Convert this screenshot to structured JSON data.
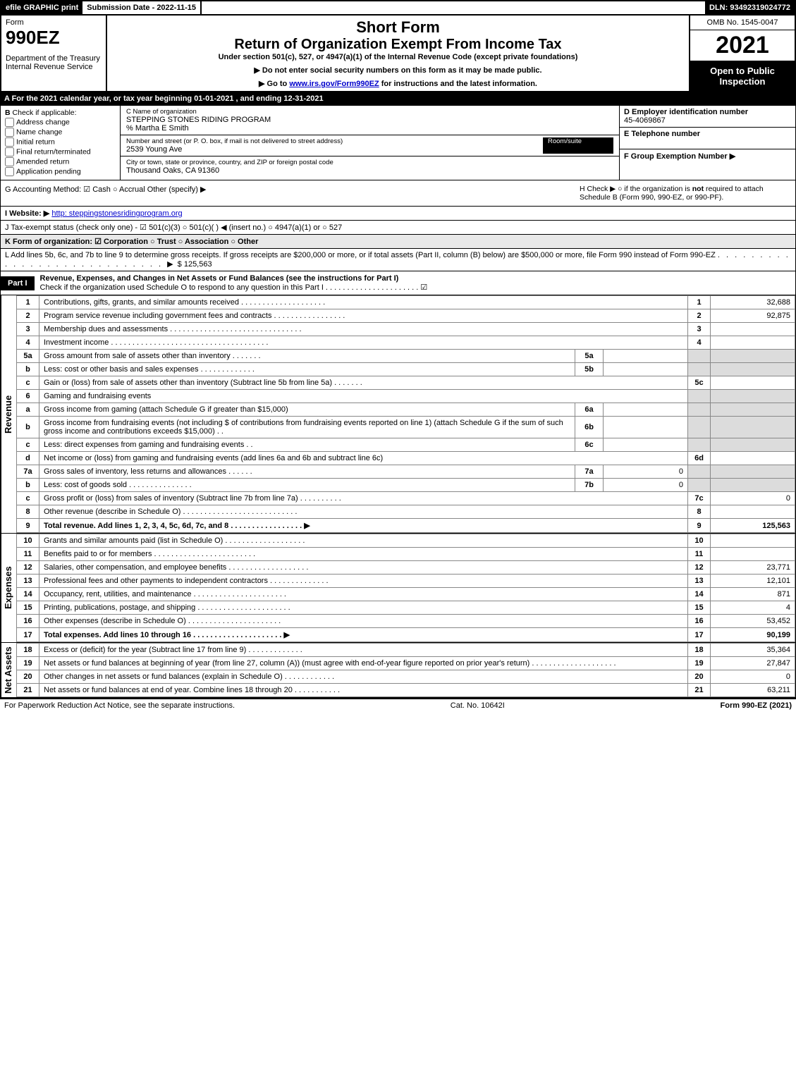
{
  "topbar": {
    "efile": "efile GRAPHIC print",
    "submission": "Submission Date - 2022-11-15",
    "dln": "DLN: 93492319024772"
  },
  "header": {
    "form_word": "Form",
    "form_code": "990EZ",
    "dept": "Department of the Treasury\nInternal Revenue Service",
    "title1": "Short Form",
    "title2": "Return of Organization Exempt From Income Tax",
    "subtitle": "Under section 501(c), 527, or 4947(a)(1) of the Internal Revenue Code (except private foundations)",
    "note1": "▶ Do not enter social security numbers on this form as it may be made public.",
    "note2_pre": "▶ Go to ",
    "note2_link": "www.irs.gov/Form990EZ",
    "note2_post": " for instructions and the latest information.",
    "omb": "OMB No. 1545-0047",
    "year": "2021",
    "open": "Open to Public Inspection"
  },
  "row_A": "A  For the 2021 calendar year, or tax year beginning 01-01-2021 , and ending 12-31-2021",
  "section_B": {
    "label": "Check if applicable:",
    "opts": [
      "Address change",
      "Name change",
      "Initial return",
      "Final return/terminated",
      "Amended return",
      "Application pending"
    ]
  },
  "section_C": {
    "c_lbl": "C Name of organization",
    "org": "STEPPING STONES RIDING PROGRAM",
    "care_of": "% Martha E Smith",
    "addr_lbl": "Number and street (or P. O. box, if mail is not delivered to street address)",
    "room_lbl": "Room/suite",
    "addr": "2539 Young Ave",
    "city_lbl": "City or town, state or province, country, and ZIP or foreign postal code",
    "city": "Thousand Oaks, CA  91360"
  },
  "section_DEF": {
    "d_lbl": "D Employer identification number",
    "ein": "45-4069867",
    "e_lbl": "E Telephone number",
    "f_lbl": "F Group Exemption Number  ▶"
  },
  "row_G": {
    "left": "G Accounting Method:  ☑ Cash  ○ Accrual  Other (specify) ▶ ",
    "h_prefix": "H  Check ▶  ○  if the organization is ",
    "h_bold": "not",
    "h_rest": " required to attach Schedule B (Form 990, 990-EZ, or 990-PF)."
  },
  "row_I": {
    "pre": "I Website: ▶",
    "link": "http: steppingstonesridingprogram.org"
  },
  "row_J": "J Tax-exempt status (check only one) - ☑ 501(c)(3) ○ 501(c)(  ) ◀ (insert no.) ○ 4947(a)(1) or ○ 527",
  "row_K": "K Form of organization:  ☑ Corporation  ○ Trust  ○ Association  ○ Other",
  "row_L": {
    "text": "L Add lines 5b, 6c, and 7b to line 9 to determine gross receipts. If gross receipts are $200,000 or more, or if total assets (Part II, column (B) below) are $500,000 or more, file Form 990 instead of Form 990-EZ ",
    "dots": ". . . . . . . . . . . . . . . . . . . . . . . . . . . . ▶",
    "val": "$ 125,563"
  },
  "part1": {
    "tag": "Part I",
    "desc": "Revenue, Expenses, and Changes in Net Assets or Fund Balances (see the instructions for Part I)",
    "check": "Check if the organization used Schedule O to respond to any question in this Part I . . . . . . . . . . . . . . . . . . . . . . ☑"
  },
  "vlabels": {
    "rev": "Revenue",
    "exp": "Expenses",
    "na": "Net Assets"
  },
  "revenue": [
    {
      "ln": "1",
      "desc": "Contributions, gifts, grants, and similar amounts received . . . . . . . . . . . . . . . . . . . .",
      "num": "1",
      "val": "32,688"
    },
    {
      "ln": "2",
      "desc": "Program service revenue including government fees and contracts . . . . . . . . . . . . . . . . .",
      "num": "2",
      "val": "92,875"
    },
    {
      "ln": "3",
      "desc": "Membership dues and assessments . . . . . . . . . . . . . . . . . . . . . . . . . . . . . . .",
      "num": "3",
      "val": ""
    },
    {
      "ln": "4",
      "desc": "Investment income . . . . . . . . . . . . . . . . . . . . . . . . . . . . . . . . . . . . .",
      "num": "4",
      "val": ""
    },
    {
      "ln": "5a",
      "desc": "Gross amount from sale of assets other than inventory . . . . . . .",
      "mid": "5a",
      "midv": "",
      "shade": true
    },
    {
      "ln": "b",
      "desc": "Less: cost or other basis and sales expenses . . . . . . . . . . . . .",
      "mid": "5b",
      "midv": "",
      "shade": true
    },
    {
      "ln": "c",
      "desc": "Gain or (loss) from sale of assets other than inventory (Subtract line 5b from line 5a) . . . . . . .",
      "num": "5c",
      "val": ""
    },
    {
      "ln": "6",
      "desc": "Gaming and fundraising events",
      "shade": true
    },
    {
      "ln": "a",
      "desc": "Gross income from gaming (attach Schedule G if greater than $15,000)",
      "mid": "6a",
      "midv": "",
      "shade": true
    },
    {
      "ln": "b",
      "desc": "Gross income from fundraising events (not including $                of contributions from fundraising events reported on line 1) (attach Schedule G if the sum of such gross income and contributions exceeds $15,000)   .  .",
      "mid": "6b",
      "midv": "",
      "shade": true
    },
    {
      "ln": "c",
      "desc": "Less: direct expenses from gaming and fundraising events   . .",
      "mid": "6c",
      "midv": "",
      "shade": true
    },
    {
      "ln": "d",
      "desc": "Net income or (loss) from gaming and fundraising events (add lines 6a and 6b and subtract line 6c)",
      "num": "6d",
      "val": ""
    },
    {
      "ln": "7a",
      "desc": "Gross sales of inventory, less returns and allowances . . . . . .",
      "mid": "7a",
      "midv": "0",
      "shade": true
    },
    {
      "ln": "b",
      "desc": "Less: cost of goods sold      .  .  .  .  .  .  .  .  .  .  .  .  .  .  .",
      "mid": "7b",
      "midv": "0",
      "shade": true
    },
    {
      "ln": "c",
      "desc": "Gross profit or (loss) from sales of inventory (Subtract line 7b from line 7a) . . . . . . . . . .",
      "num": "7c",
      "val": "0"
    },
    {
      "ln": "8",
      "desc": "Other revenue (describe in Schedule O) . . . . . . . . . . . . . . . . . . . . . . . . . . .",
      "num": "8",
      "val": ""
    },
    {
      "ln": "9",
      "desc": "Total revenue. Add lines 1, 2, 3, 4, 5c, 6d, 7c, and 8  .  .  .  .  .  .  .  .  .  .  .  .  .  .  .  .  . ▶",
      "num": "9",
      "val": "125,563",
      "bold": true
    }
  ],
  "expenses": [
    {
      "ln": "10",
      "desc": "Grants and similar amounts paid (list in Schedule O) .  .  .  .  .  .  .  .  .  .  .  .  .  .  .  .  .  .  .",
      "num": "10",
      "val": ""
    },
    {
      "ln": "11",
      "desc": "Benefits paid to or for members     .  .  .  .  .  .  .  .  .  .  .  .  .  .  .  .  .  .  .  .  .  .  .  .",
      "num": "11",
      "val": ""
    },
    {
      "ln": "12",
      "desc": "Salaries, other compensation, and employee benefits .  .  .  .  .  .  .  .  .  .  .  .  .  .  .  .  .  .  .",
      "num": "12",
      "val": "23,771"
    },
    {
      "ln": "13",
      "desc": "Professional fees and other payments to independent contractors .  .  .  .  .  .  .  .  .  .  .  .  .  .",
      "num": "13",
      "val": "12,101"
    },
    {
      "ln": "14",
      "desc": "Occupancy, rent, utilities, and maintenance .  .  .  .  .  .  .  .  .  .  .  .  .  .  .  .  .  .  .  .  .  .",
      "num": "14",
      "val": "871"
    },
    {
      "ln": "15",
      "desc": "Printing, publications, postage, and shipping .  .  .  .  .  .  .  .  .  .  .  .  .  .  .  .  .  .  .  .  .  .",
      "num": "15",
      "val": "4"
    },
    {
      "ln": "16",
      "desc": "Other expenses (describe in Schedule O)    .  .  .  .  .  .  .  .  .  .  .  .  .  .  .  .  .  .  .  .  .  .",
      "num": "16",
      "val": "53,452"
    },
    {
      "ln": "17",
      "desc": "Total expenses. Add lines 10 through 16    .  .  .  .  .  .  .  .  .  .  .  .  .  .  .  .  .  .  .  .  . ▶",
      "num": "17",
      "val": "90,199",
      "bold": true
    }
  ],
  "netassets": [
    {
      "ln": "18",
      "desc": "Excess or (deficit) for the year (Subtract line 17 from line 9)      .  .  .  .  .  .  .  .  .  .  .  .  .",
      "num": "18",
      "val": "35,364"
    },
    {
      "ln": "19",
      "desc": "Net assets or fund balances at beginning of year (from line 27, column (A)) (must agree with end-of-year figure reported on prior year's return) .  .  .  .  .  .  .  .  .  .  .  .  .  .  .  .  .  .  .  .",
      "num": "19",
      "val": "27,847"
    },
    {
      "ln": "20",
      "desc": "Other changes in net assets or fund balances (explain in Schedule O) .  .  .  .  .  .  .  .  .  .  .  .",
      "num": "20",
      "val": "0"
    },
    {
      "ln": "21",
      "desc": "Net assets or fund balances at end of year. Combine lines 18 through 20 .  .  .  .  .  .  .  .  .  .  .",
      "num": "21",
      "val": "63,211"
    }
  ],
  "footer": {
    "left": "For Paperwork Reduction Act Notice, see the separate instructions.",
    "mid": "Cat. No. 10642I",
    "right": "Form 990-EZ (2021)"
  }
}
